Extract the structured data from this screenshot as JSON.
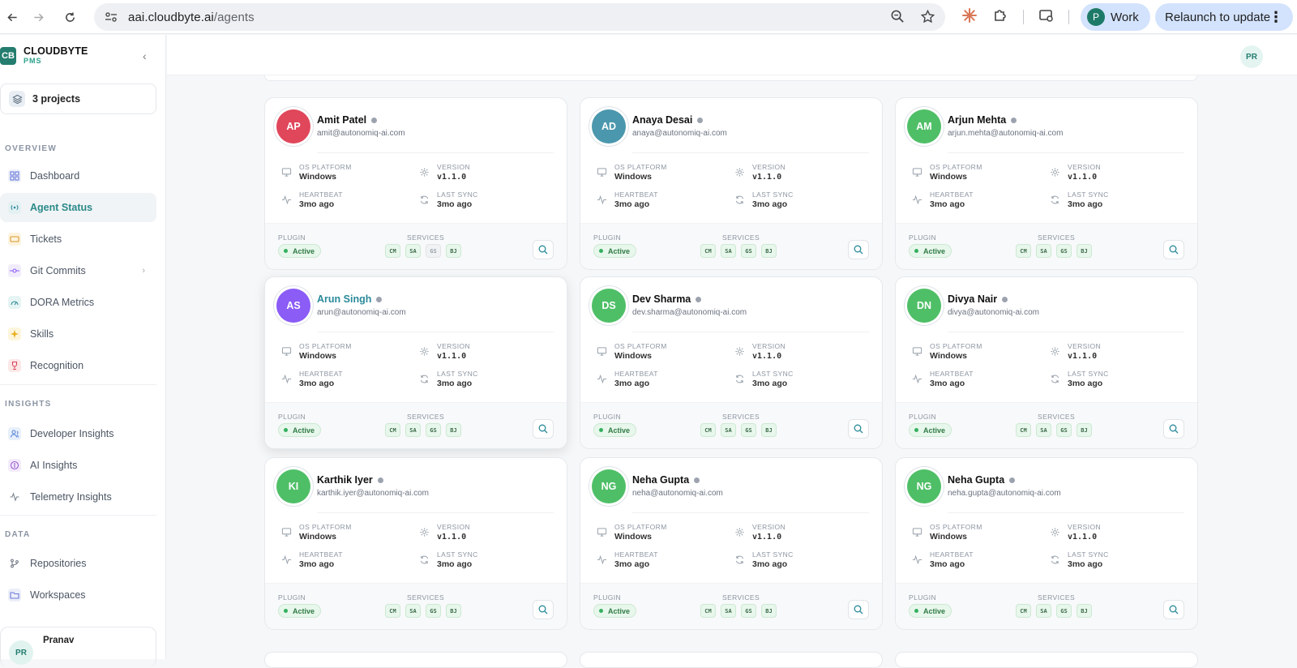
{
  "browser": {
    "url_host": "aai.cloudbyte.ai",
    "url_path": "/agents",
    "profile_initial": "P",
    "profile_label": "Work",
    "relaunch_label": "Relaunch to update"
  },
  "brand": {
    "logo": "CB",
    "name": "CLOUDBYTE",
    "sub": "PMS"
  },
  "projects_label": "3 projects",
  "sections": {
    "overview": "OVERVIEW",
    "insights": "INSIGHTS",
    "data": "DATA"
  },
  "nav": {
    "overview": [
      {
        "label": "Dashboard",
        "icon": "grid-icon"
      },
      {
        "label": "Agent Status",
        "icon": "broadcast-icon",
        "active": true
      },
      {
        "label": "Tickets",
        "icon": "ticket-icon"
      },
      {
        "label": "Git Commits",
        "icon": "commit-icon"
      },
      {
        "label": "DORA Metrics",
        "icon": "gauge-icon"
      },
      {
        "label": "Skills",
        "icon": "sparkle-icon"
      },
      {
        "label": "Recognition",
        "icon": "trophy-icon"
      }
    ],
    "insights": [
      {
        "label": "Developer Insights",
        "icon": "users-icon"
      },
      {
        "label": "AI Insights",
        "icon": "ai-icon"
      },
      {
        "label": "Telemetry Insights",
        "icon": "pulse-icon"
      }
    ],
    "data": [
      {
        "label": "Repositories",
        "icon": "branch-icon"
      },
      {
        "label": "Workspaces",
        "icon": "folder-icon"
      }
    ]
  },
  "user": {
    "initials": "PR",
    "name": "Pranav"
  },
  "header_avatar": "PR",
  "labels": {
    "os_platform": "OS PLATFORM",
    "version": "VERSION",
    "heartbeat": "HEARTBEAT",
    "last_sync": "LAST SYNC",
    "plugin": "PLUGIN",
    "services": "SERVICES",
    "active": "Active"
  },
  "colors": {
    "accent": "#247d6f",
    "active_green": "#35b060"
  },
  "agents": [
    {
      "initials": "AP",
      "name": "Amit Patel",
      "email": "amit@autonomiq-ai.com",
      "os": "Windows",
      "version": "v1.1.0",
      "heartbeat": "3mo ago",
      "last_sync": "3mo ago",
      "color": "#e0475b",
      "services": [
        "CM",
        "SA",
        "GS",
        "BJ"
      ],
      "services_off": [
        2
      ]
    },
    {
      "initials": "AD",
      "name": "Anaya Desai",
      "email": "anaya@autonomiq-ai.com",
      "os": "Windows",
      "version": "v1.1.0",
      "heartbeat": "3mo ago",
      "last_sync": "3mo ago",
      "color": "#4b97ad",
      "services": [
        "CM",
        "SA",
        "GS",
        "BJ"
      ],
      "services_off": []
    },
    {
      "initials": "AM",
      "name": "Arjun Mehta",
      "email": "arjun.mehta@autonomiq-ai.com",
      "os": "Windows",
      "version": "v1.1.0",
      "heartbeat": "3mo ago",
      "last_sync": "3mo ago",
      "color": "#4fbf67",
      "services": [
        "CM",
        "SA",
        "GS",
        "BJ"
      ],
      "services_off": []
    },
    {
      "initials": "AS",
      "name": "Arun Singh",
      "email": "arun@autonomiq-ai.com",
      "os": "Windows",
      "version": "v1.1.0",
      "heartbeat": "3mo ago",
      "last_sync": "3mo ago",
      "color": "#8b5cf6",
      "services": [
        "CM",
        "SA",
        "GS",
        "BJ"
      ],
      "services_off": []
    },
    {
      "initials": "DS",
      "name": "Dev Sharma",
      "email": "dev.sharma@autonomiq-ai.com",
      "os": "Windows",
      "version": "v1.1.0",
      "heartbeat": "3mo ago",
      "last_sync": "3mo ago",
      "color": "#4fbf67",
      "services": [
        "CM",
        "SA",
        "GS",
        "BJ"
      ],
      "services_off": []
    },
    {
      "initials": "DN",
      "name": "Divya Nair",
      "email": "divya@autonomiq-ai.com",
      "os": "Windows",
      "version": "v1.1.0",
      "heartbeat": "3mo ago",
      "last_sync": "3mo ago",
      "color": "#4fbf67",
      "services": [
        "CM",
        "SA",
        "GS",
        "BJ"
      ],
      "services_off": []
    },
    {
      "initials": "KI",
      "name": "Karthik Iyer",
      "email": "karthik.iyer@autonomiq-ai.com",
      "os": "Windows",
      "version": "v1.1.0",
      "heartbeat": "3mo ago",
      "last_sync": "3mo ago",
      "color": "#4fbf67",
      "services": [
        "CM",
        "SA",
        "GS",
        "BJ"
      ],
      "services_off": []
    },
    {
      "initials": "NG",
      "name": "Neha Gupta",
      "email": "neha@autonomiq-ai.com",
      "os": "Windows",
      "version": "v1.1.0",
      "heartbeat": "3mo ago",
      "last_sync": "3mo ago",
      "color": "#4fbf67",
      "services": [
        "CM",
        "SA",
        "GS",
        "BJ"
      ],
      "services_off": []
    },
    {
      "initials": "NG",
      "name": "Neha Gupta",
      "email": "neha.gupta@autonomiq-ai.com",
      "os": "Windows",
      "version": "v1.1.0",
      "heartbeat": "3mo ago",
      "last_sync": "3mo ago",
      "color": "#4fbf67",
      "services": [
        "CM",
        "SA",
        "GS",
        "BJ"
      ],
      "services_off": []
    }
  ]
}
